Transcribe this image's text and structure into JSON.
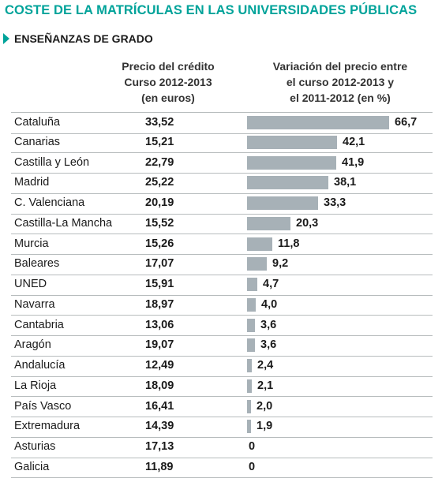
{
  "title": "COSTE DE LA MATRÍCULAS EN LAS UNIVERSIDADES PÚBLICAS",
  "subtitle": "ENSEÑANZAS DE GRADO",
  "columns": {
    "price_header": [
      "Precio del crédito",
      "Curso 2012-2013",
      "(en euros)"
    ],
    "variation_header": [
      "Variación del precio entre",
      "el curso 2012-2013 y",
      "el 2011-2012 (en %)"
    ]
  },
  "colors": {
    "accent": "#00a39a",
    "bar": "#a7b1b7",
    "rule": "#b7bcbd"
  },
  "chart_data": {
    "type": "bar",
    "orientation": "horizontal",
    "categories": [
      "Cataluña",
      "Canarias",
      "Castilla y León",
      "Madrid",
      "C. Valenciana",
      "Castilla-La Mancha",
      "Murcia",
      "Baleares",
      "UNED",
      "Navarra",
      "Cantabria",
      "Aragón",
      "Andalucía",
      "La Rioja",
      "País Vasco",
      "Extremadura",
      "Asturias",
      "Galicia"
    ],
    "price_labels": [
      "33,52",
      "15,21",
      "22,79",
      "25,22",
      "20,19",
      "15,52",
      "15,26",
      "17,07",
      "15,91",
      "18,97",
      "13,06",
      "19,07",
      "12,49",
      "18,09",
      "16,41",
      "14,39",
      "17,13",
      "11,89"
    ],
    "values": [
      66.7,
      42.1,
      41.9,
      38.1,
      33.3,
      20.3,
      11.8,
      9.2,
      4.7,
      4.0,
      3.6,
      3.6,
      2.4,
      2.1,
      2.0,
      1.9,
      0,
      0
    ],
    "value_labels": [
      "66,7",
      "42,1",
      "41,9",
      "38,1",
      "33,3",
      "20,3",
      "11,8",
      "9,2",
      "4,7",
      "4,0",
      "3,6",
      "3,6",
      "2,4",
      "2,1",
      "2,0",
      "1,9",
      "0",
      "0"
    ],
    "xlim": [
      0,
      66.7
    ]
  }
}
